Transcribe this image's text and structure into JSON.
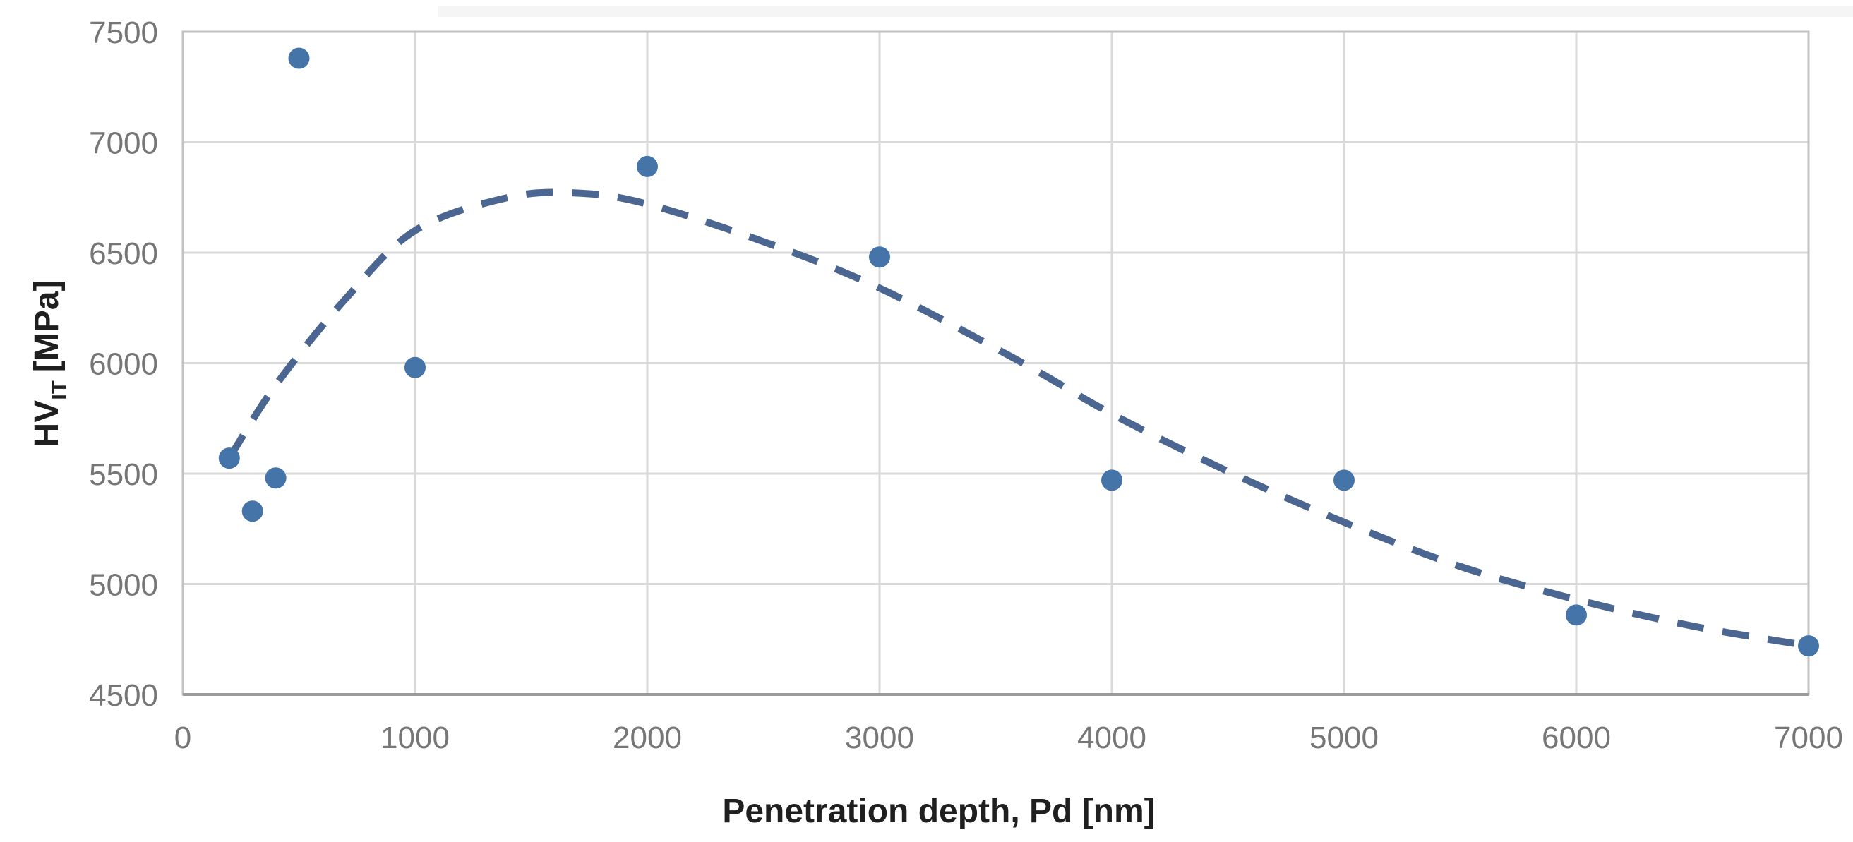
{
  "chart_data": {
    "type": "scatter",
    "title": "",
    "xlabel": "Penetration depth, Pd [nm]",
    "ylabel": "HVIT [MPa]",
    "axes": {
      "y_main": "HV",
      "y_sub": "IT",
      "y_unit": "[MPa]"
    },
    "xlim": [
      0,
      7000
    ],
    "ylim": [
      4500,
      7500
    ],
    "x_ticks": [
      0,
      1000,
      2000,
      3000,
      4000,
      5000,
      6000,
      7000
    ],
    "y_ticks": [
      4500,
      5000,
      5500,
      6000,
      6500,
      7000,
      7500
    ],
    "grid": true,
    "legend": "none",
    "points": [
      [
        200,
        5570
      ],
      [
        300,
        5330
      ],
      [
        400,
        5480
      ],
      [
        500,
        7380
      ],
      [
        1000,
        5980
      ],
      [
        2000,
        6890
      ],
      [
        3000,
        6480
      ],
      [
        4000,
        5470
      ],
      [
        5000,
        5470
      ],
      [
        6000,
        4860
      ],
      [
        7000,
        4720
      ]
    ],
    "trendline": {
      "style": "dashed",
      "points": [
        [
          200,
          5570
        ],
        [
          400,
          5900
        ],
        [
          700,
          6290
        ],
        [
          1000,
          6600
        ],
        [
          1400,
          6750
        ],
        [
          1700,
          6770
        ],
        [
          2000,
          6720
        ],
        [
          2500,
          6550
        ],
        [
          3000,
          6340
        ],
        [
          3600,
          6010
        ],
        [
          4000,
          5770
        ],
        [
          4500,
          5510
        ],
        [
          5000,
          5280
        ],
        [
          5500,
          5080
        ],
        [
          6000,
          4930
        ],
        [
          6500,
          4810
        ],
        [
          7000,
          4720
        ]
      ]
    },
    "colors": {
      "point": "#4574a9",
      "trend": "#4b6690",
      "grid": "#d9d9d9",
      "border": "#c2c2c2",
      "axis": "#9a9a9a",
      "tick_text": "#767676",
      "title_text": "#1f1f1f"
    }
  }
}
